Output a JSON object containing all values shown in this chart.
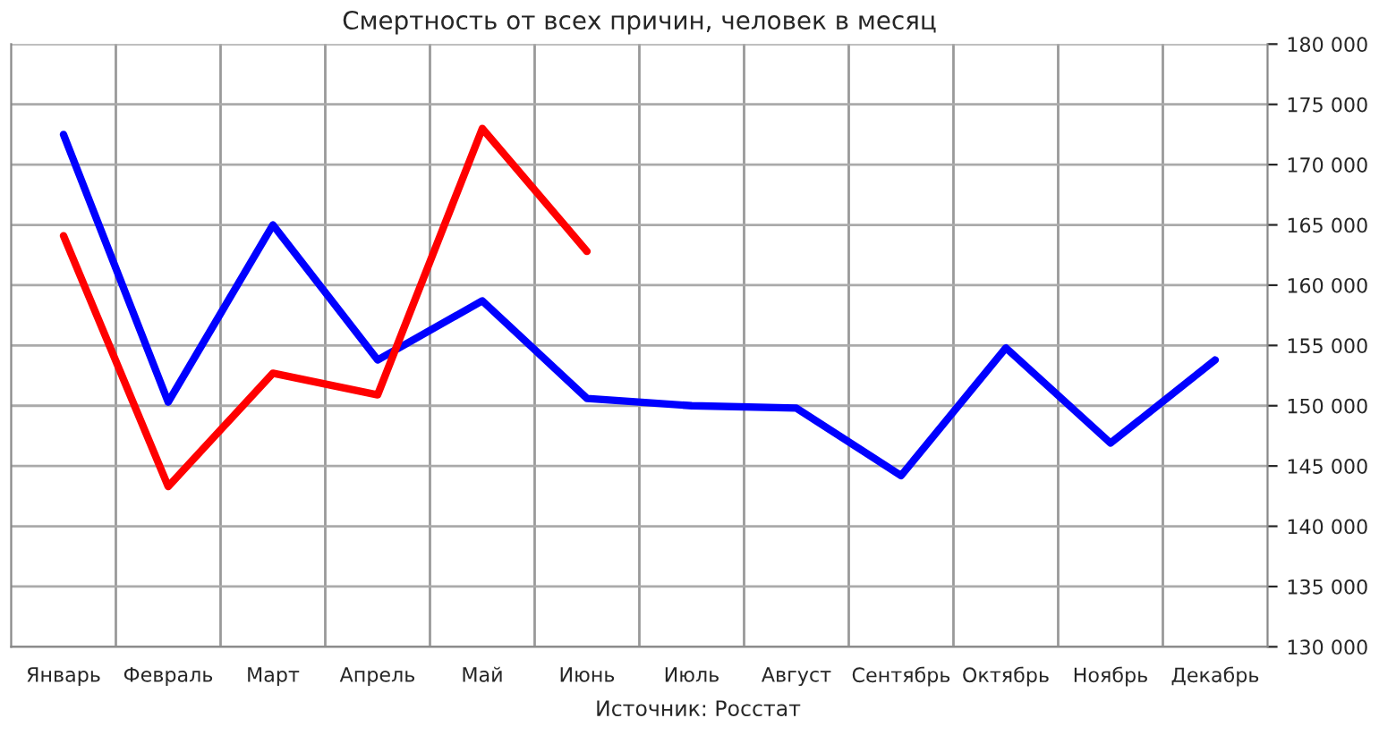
{
  "chart_data": {
    "type": "line",
    "title": "Смертность от всех причин, человек в месяц",
    "categories": [
      "Январь",
      "Февраль",
      "Март",
      "Апрель",
      "Май",
      "Июнь",
      "Июль",
      "Август",
      "Сентябрь",
      "Октябрь",
      "Ноябрь",
      "Декабрь"
    ],
    "series": [
      {
        "color": "#0000ff",
        "values": [
          172500,
          150300,
          165000,
          153800,
          158700,
          150600,
          150000,
          149800,
          144200,
          154800,
          146900,
          153800
        ]
      },
      {
        "color": "#ff0000",
        "values": [
          164100,
          143300,
          152700,
          150900,
          173000,
          162800,
          null,
          null,
          null,
          null,
          null,
          null
        ]
      }
    ],
    "ylim": [
      130000,
      180000
    ],
    "yticks": [
      {
        "value": 130000,
        "label": "130 000"
      },
      {
        "value": 135000,
        "label": "135 000"
      },
      {
        "value": 140000,
        "label": "140 000"
      },
      {
        "value": 145000,
        "label": "145 000"
      },
      {
        "value": 150000,
        "label": "150 000"
      },
      {
        "value": 155000,
        "label": "155 000"
      },
      {
        "value": 160000,
        "label": "160 000"
      },
      {
        "value": 165000,
        "label": "165 000"
      },
      {
        "value": 170000,
        "label": "170 000"
      },
      {
        "value": 175000,
        "label": "175 000"
      },
      {
        "value": 180000,
        "label": "180 000"
      }
    ],
    "grid": true,
    "legend": false,
    "marker": "none",
    "line_style": "solid",
    "annotations": [
      "Источник: Росстат"
    ]
  }
}
